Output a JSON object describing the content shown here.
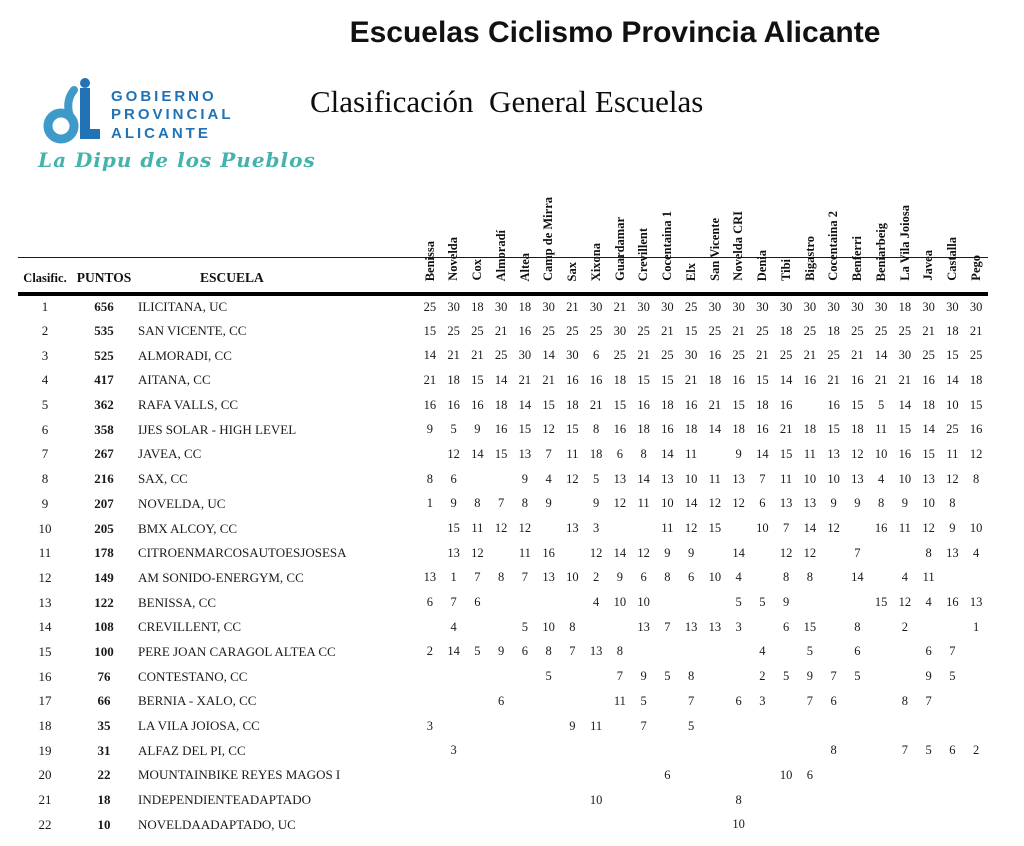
{
  "page": {
    "title": "Escuelas Ciclismo Provincia Alicante",
    "subtitle": "Clasificación  General Escuelas"
  },
  "logo": {
    "org_lines": [
      "GOBIERNO",
      "PROVINCIAL",
      "ALICANTE"
    ],
    "tagline": "La Dipu de los Pueblos"
  },
  "colors": {
    "title_maroon": "#9E1B3B",
    "logo_blue": "#2173B6",
    "monogram_light_blue": "#3E9AC9",
    "tagline_teal": "#44B3AC"
  },
  "table": {
    "headers": {
      "clasific": "Clasific.",
      "puntos": "PUNTOS",
      "escuela": "ESCUELA"
    },
    "columns": [
      "Benissa",
      "Novelda",
      "Cox",
      "Almoradí",
      "Altea",
      "Camp de Mirra",
      "Sax",
      "Xixona",
      "Guardamar",
      "Crevillent",
      "Cocentaina 1",
      "Elx",
      "San Vicente",
      "Novelda CRI",
      "Denia",
      "Tibi",
      "Bigastro",
      "Cocentaina 2",
      "Benferri",
      "Beniarbeig",
      "La Vila Joiosa",
      "Javea",
      "Castalla",
      "Pego"
    ],
    "rows": [
      {
        "clasific": "1",
        "puntos": "656",
        "escuela": "ILICITANA, UC",
        "scores": [
          25,
          30,
          18,
          30,
          18,
          30,
          21,
          30,
          21,
          30,
          30,
          25,
          30,
          30,
          30,
          30,
          30,
          30,
          30,
          30,
          18,
          30,
          30,
          30
        ]
      },
      {
        "clasific": "2",
        "puntos": "535",
        "escuela": "SAN VICENTE, CC",
        "scores": [
          15,
          25,
          25,
          21,
          16,
          25,
          25,
          25,
          30,
          25,
          21,
          15,
          25,
          21,
          25,
          18,
          25,
          18,
          25,
          25,
          25,
          21,
          18,
          21
        ]
      },
      {
        "clasific": "3",
        "puntos": "525",
        "escuela": "ALMORADI, CC",
        "scores": [
          14,
          21,
          21,
          25,
          30,
          14,
          30,
          6,
          25,
          21,
          25,
          30,
          16,
          25,
          21,
          25,
          21,
          25,
          21,
          14,
          30,
          25,
          15,
          25
        ]
      },
      {
        "clasific": "4",
        "puntos": "417",
        "escuela": "AITANA, CC",
        "scores": [
          21,
          18,
          15,
          14,
          21,
          21,
          16,
          16,
          18,
          15,
          15,
          21,
          18,
          16,
          15,
          14,
          16,
          21,
          16,
          21,
          21,
          16,
          14,
          18
        ]
      },
      {
        "clasific": "5",
        "puntos": "362",
        "escuela": "RAFA VALLS, CC",
        "scores": [
          16,
          16,
          16,
          18,
          14,
          15,
          18,
          21,
          15,
          16,
          18,
          16,
          21,
          15,
          18,
          16,
          "",
          16,
          15,
          5,
          14,
          18,
          10,
          15
        ]
      },
      {
        "clasific": "6",
        "puntos": "358",
        "escuela": "IJES SOLAR - HIGH LEVEL",
        "scores": [
          9,
          5,
          9,
          16,
          15,
          12,
          15,
          8,
          16,
          18,
          16,
          18,
          14,
          18,
          16,
          21,
          18,
          15,
          18,
          11,
          15,
          14,
          25,
          16
        ]
      },
      {
        "clasific": "7",
        "puntos": "267",
        "escuela": "JAVEA, CC",
        "scores": [
          "",
          12,
          14,
          15,
          13,
          7,
          11,
          18,
          6,
          8,
          14,
          11,
          "",
          9,
          14,
          15,
          11,
          13,
          12,
          10,
          16,
          15,
          11,
          12
        ]
      },
      {
        "clasific": "8",
        "puntos": "216",
        "escuela": "SAX, CC",
        "scores": [
          8,
          6,
          "",
          "",
          9,
          4,
          12,
          5,
          13,
          14,
          13,
          10,
          11,
          13,
          7,
          11,
          10,
          10,
          13,
          4,
          10,
          13,
          12,
          8
        ]
      },
      {
        "clasific": "9",
        "puntos": "207",
        "escuela": "NOVELDA, UC",
        "scores": [
          1,
          9,
          8,
          7,
          8,
          9,
          "",
          9,
          12,
          11,
          10,
          14,
          12,
          12,
          6,
          13,
          13,
          9,
          9,
          8,
          9,
          10,
          8,
          ""
        ]
      },
      {
        "clasific": "10",
        "puntos": "205",
        "escuela": "BMX ALCOY, CC",
        "scores": [
          "",
          15,
          11,
          12,
          12,
          "",
          13,
          3,
          "",
          "",
          11,
          12,
          15,
          "",
          10,
          7,
          14,
          12,
          "",
          16,
          11,
          12,
          9,
          10
        ]
      },
      {
        "clasific": "11",
        "puntos": "178",
        "escuela": "CITROENMARCOSAUTOESJOSESA",
        "scores": [
          "",
          13,
          12,
          "",
          11,
          16,
          "",
          12,
          14,
          12,
          9,
          9,
          "",
          14,
          "",
          12,
          12,
          "",
          7,
          "",
          "",
          8,
          13,
          4
        ]
      },
      {
        "clasific": "12",
        "puntos": "149",
        "escuela": "AM SONIDO-ENERGYM, CC",
        "scores": [
          13,
          1,
          7,
          8,
          7,
          13,
          10,
          2,
          9,
          6,
          8,
          6,
          10,
          4,
          "",
          8,
          8,
          "",
          14,
          "",
          4,
          11,
          "",
          ""
        ]
      },
      {
        "clasific": "13",
        "puntos": "122",
        "escuela": "BENISSA, CC",
        "scores": [
          6,
          7,
          6,
          "",
          "",
          "",
          "",
          4,
          10,
          10,
          "",
          "",
          "",
          5,
          5,
          9,
          "",
          "",
          "",
          15,
          12,
          4,
          16,
          13
        ]
      },
      {
        "clasific": "14",
        "puntos": "108",
        "escuela": "CREVILLENT, CC",
        "scores": [
          "",
          4,
          "",
          "",
          5,
          10,
          8,
          "",
          "",
          13,
          7,
          13,
          13,
          3,
          "",
          6,
          15,
          "",
          8,
          "",
          2,
          "",
          "",
          1
        ]
      },
      {
        "clasific": "15",
        "puntos": "100",
        "escuela": "PERE JOAN CARAGOL ALTEA CC",
        "scores": [
          2,
          14,
          5,
          9,
          6,
          8,
          7,
          13,
          8,
          "",
          "",
          "",
          "",
          "",
          4,
          "",
          5,
          "",
          6,
          "",
          "",
          6,
          7,
          ""
        ]
      },
      {
        "clasific": "16",
        "puntos": "76",
        "escuela": "CONTESTANO, CC",
        "scores": [
          "",
          "",
          "",
          "",
          "",
          5,
          "",
          "",
          7,
          9,
          5,
          8,
          "",
          "",
          2,
          5,
          9,
          7,
          5,
          "",
          "",
          9,
          5,
          ""
        ]
      },
      {
        "clasific": "17",
        "puntos": "66",
        "escuela": "BERNIA - XALO, CC",
        "scores": [
          "",
          "",
          "",
          6,
          "",
          "",
          "",
          "",
          11,
          5,
          "",
          7,
          "",
          6,
          3,
          "",
          7,
          6,
          "",
          "",
          8,
          7,
          "",
          ""
        ]
      },
      {
        "clasific": "18",
        "puntos": "35",
        "escuela": "LA VILA JOIOSA, CC",
        "scores": [
          3,
          "",
          "",
          "",
          "",
          "",
          9,
          11,
          "",
          7,
          "",
          5,
          "",
          "",
          "",
          "",
          "",
          "",
          "",
          "",
          "",
          "",
          "",
          ""
        ]
      },
      {
        "clasific": "19",
        "puntos": "31",
        "escuela": "ALFAZ DEL PI, CC",
        "scores": [
          "",
          3,
          "",
          "",
          "",
          "",
          "",
          "",
          "",
          "",
          "",
          "",
          "",
          "",
          "",
          "",
          "",
          8,
          "",
          "",
          7,
          5,
          6,
          2
        ]
      },
      {
        "clasific": "20",
        "puntos": "22",
        "escuela": "MOUNTAINBIKE REYES MAGOS I",
        "scores": [
          "",
          "",
          "",
          "",
          "",
          "",
          "",
          "",
          "",
          "",
          6,
          "",
          "",
          "",
          "",
          10,
          6,
          "",
          "",
          "",
          "",
          "",
          "",
          ""
        ]
      },
      {
        "clasific": "21",
        "puntos": "18",
        "escuela": "INDEPENDIENTEADAPTADO",
        "scores": [
          "",
          "",
          "",
          "",
          "",
          "",
          "",
          10,
          "",
          "",
          "",
          "",
          "",
          8,
          "",
          "",
          "",
          "",
          "",
          "",
          "",
          "",
          "",
          ""
        ]
      },
      {
        "clasific": "22",
        "puntos": "10",
        "escuela": "NOVELDAADAPTADO, UC",
        "scores": [
          "",
          "",
          "",
          "",
          "",
          "",
          "",
          "",
          "",
          "",
          "",
          "",
          "",
          10,
          "",
          "",
          "",
          "",
          "",
          "",
          "",
          "",
          "",
          ""
        ]
      }
    ]
  }
}
